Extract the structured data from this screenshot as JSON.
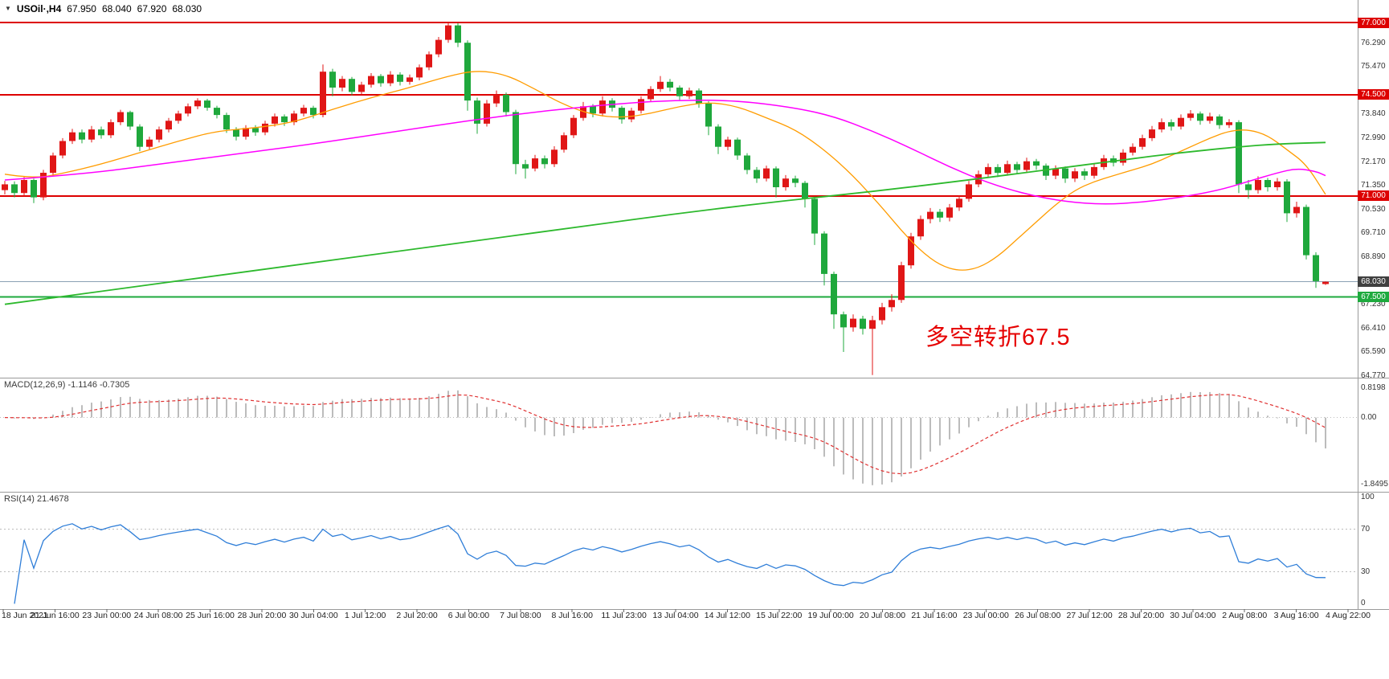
{
  "header": {
    "symbol_period": "USOil·,H4",
    "open": "67.950",
    "high": "68.040",
    "low": "67.920",
    "close": "68.030"
  },
  "annotation": {
    "text": "多空转折67.5",
    "color": "#e60000"
  },
  "panes": {
    "macd": {
      "label": "MACD(12,26,9) -1.1146 -0.7305",
      "axis_labels": [
        "0.8198",
        "0.00",
        "-1.8495"
      ]
    },
    "rsi": {
      "label": "RSI(14) 21.4678",
      "axis_labels": [
        "100",
        "70",
        "30",
        "0"
      ]
    }
  },
  "price_axis": {
    "ticks": [
      "76.290",
      "75.470",
      "73.840",
      "72.990",
      "72.170",
      "71.350",
      "70.530",
      "69.710",
      "68.890",
      "67.230",
      "66.410",
      "65.590",
      "64.770"
    ],
    "tags": [
      {
        "value": "77.000",
        "bg": "#dd0000",
        "fg": "#ffffff"
      },
      {
        "value": "74.500",
        "bg": "#dd0000",
        "fg": "#ffffff"
      },
      {
        "value": "71.000",
        "bg": "#dd0000",
        "fg": "#ffffff"
      },
      {
        "value": "68.030",
        "bg": "#404040",
        "fg": "#ffffff"
      },
      {
        "value": "67.500",
        "bg": "#1eaa3e",
        "fg": "#ffffff"
      }
    ]
  },
  "hlines": [
    {
      "price": 77.0,
      "color": "#dd0000",
      "width": 2
    },
    {
      "price": 74.5,
      "color": "#dd0000",
      "width": 2
    },
    {
      "price": 71.0,
      "color": "#dd0000",
      "width": 2
    },
    {
      "price": 67.5,
      "color": "#1eaa3e",
      "width": 2
    },
    {
      "price": 68.03,
      "color": "#8aa0b4",
      "width": 1,
      "top": true
    }
  ],
  "time_axis": [
    "18 Jun 2021",
    "21 Jun 16:00",
    "23 Jun 00:00",
    "24 Jun 08:00",
    "25 Jun 16:00",
    "28 Jun 20:00",
    "30 Jun 04:00",
    "1 Jul 12:00",
    "2 Jul 20:00",
    "6 Jul 00:00",
    "7 Jul 08:00",
    "8 Jul 16:00",
    "11 Jul 23:00",
    "13 Jul 04:00",
    "14 Jul 12:00",
    "15 Jul 22:00",
    "19 Jul 00:00",
    "20 Jul 08:00",
    "21 Jul 16:00",
    "23 Jul 00:00",
    "26 Jul 08:00",
    "27 Jul 12:00",
    "28 Jul 20:00",
    "30 Jul 04:00",
    "2 Aug 08:00",
    "3 Aug 16:00",
    "4 Aug 22:00"
  ],
  "colors": {
    "candle_up": "#e01616",
    "candle_down": "#1fa83c",
    "macd_hist": "#bcbcbc",
    "macd_signal": "#e03030",
    "rsi_line": "#2f7ed8",
    "level_dotted": "#bcbcbc",
    "frame": "#9a9a9a"
  },
  "chart_data": {
    "type": "candlestick",
    "symbol": "USOil",
    "timeframe": "H4",
    "ylim_price": [
      64.71,
      77.78
    ],
    "candles": [
      [
        71.2,
        71.52,
        71.05,
        71.4
      ],
      [
        71.4,
        71.5,
        70.95,
        71.1
      ],
      [
        71.1,
        71.65,
        71.0,
        71.55
      ],
      [
        71.55,
        71.6,
        70.75,
        70.95
      ],
      [
        70.95,
        71.9,
        70.85,
        71.8
      ],
      [
        71.8,
        72.5,
        71.7,
        72.4
      ],
      [
        72.4,
        73.0,
        72.3,
        72.9
      ],
      [
        72.9,
        73.32,
        72.8,
        73.2
      ],
      [
        73.2,
        73.3,
        72.82,
        72.95
      ],
      [
        72.95,
        73.42,
        72.85,
        73.3
      ],
      [
        73.3,
        73.4,
        72.98,
        73.1
      ],
      [
        73.1,
        73.65,
        73.0,
        73.55
      ],
      [
        73.55,
        73.98,
        73.45,
        73.9
      ],
      [
        73.9,
        73.95,
        73.28,
        73.4
      ],
      [
        73.4,
        73.48,
        72.55,
        72.7
      ],
      [
        72.7,
        73.05,
        72.6,
        72.95
      ],
      [
        72.95,
        73.4,
        72.85,
        73.3
      ],
      [
        73.3,
        73.7,
        73.2,
        73.6
      ],
      [
        73.6,
        73.95,
        73.5,
        73.85
      ],
      [
        73.85,
        74.2,
        73.75,
        74.1
      ],
      [
        74.1,
        74.38,
        74.0,
        74.3
      ],
      [
        74.3,
        74.36,
        73.95,
        74.05
      ],
      [
        74.05,
        74.12,
        73.68,
        73.8
      ],
      [
        73.8,
        73.88,
        73.18,
        73.3
      ],
      [
        73.3,
        73.38,
        72.92,
        73.05
      ],
      [
        73.05,
        73.45,
        72.95,
        73.35
      ],
      [
        73.35,
        73.45,
        73.08,
        73.2
      ],
      [
        73.2,
        73.6,
        73.1,
        73.5
      ],
      [
        73.5,
        73.85,
        73.4,
        73.75
      ],
      [
        73.75,
        73.82,
        73.42,
        73.55
      ],
      [
        73.55,
        73.95,
        73.45,
        73.85
      ],
      [
        73.85,
        74.15,
        73.75,
        74.05
      ],
      [
        74.05,
        74.12,
        73.68,
        73.8
      ],
      [
        73.8,
        75.55,
        73.72,
        75.3
      ],
      [
        75.3,
        75.4,
        74.45,
        74.75
      ],
      [
        74.75,
        75.15,
        74.62,
        75.05
      ],
      [
        75.05,
        75.12,
        74.48,
        74.6
      ],
      [
        74.6,
        74.95,
        74.5,
        74.85
      ],
      [
        74.85,
        75.25,
        74.75,
        75.15
      ],
      [
        75.15,
        75.22,
        74.78,
        74.9
      ],
      [
        74.9,
        75.32,
        74.8,
        75.2
      ],
      [
        75.2,
        75.28,
        74.82,
        74.95
      ],
      [
        74.95,
        75.2,
        74.85,
        75.1
      ],
      [
        75.1,
        75.55,
        75.0,
        75.45
      ],
      [
        75.45,
        76.0,
        75.35,
        75.9
      ],
      [
        75.9,
        76.5,
        75.8,
        76.4
      ],
      [
        76.4,
        77.0,
        76.3,
        76.9
      ],
      [
        76.9,
        76.98,
        76.15,
        76.3
      ],
      [
        76.3,
        76.38,
        73.95,
        74.3
      ],
      [
        74.3,
        74.4,
        73.15,
        73.5
      ],
      [
        73.5,
        74.32,
        73.4,
        74.2
      ],
      [
        74.2,
        74.65,
        74.08,
        74.5
      ],
      [
        74.5,
        74.58,
        73.75,
        73.9
      ],
      [
        73.9,
        73.98,
        71.75,
        72.1
      ],
      [
        72.1,
        72.25,
        71.6,
        71.95
      ],
      [
        71.95,
        72.42,
        71.85,
        72.3
      ],
      [
        72.3,
        72.4,
        71.95,
        72.1
      ],
      [
        72.1,
        72.72,
        72.0,
        72.6
      ],
      [
        72.6,
        73.2,
        72.5,
        73.1
      ],
      [
        73.1,
        73.8,
        73.0,
        73.7
      ],
      [
        73.7,
        74.25,
        73.6,
        74.1
      ],
      [
        74.1,
        74.18,
        73.72,
        73.85
      ],
      [
        73.85,
        74.45,
        73.75,
        74.3
      ],
      [
        74.3,
        74.38,
        73.92,
        74.05
      ],
      [
        74.05,
        74.12,
        73.5,
        73.65
      ],
      [
        73.65,
        74.05,
        73.55,
        73.95
      ],
      [
        73.95,
        74.45,
        73.85,
        74.35
      ],
      [
        74.35,
        74.8,
        74.25,
        74.7
      ],
      [
        74.7,
        75.15,
        74.6,
        74.95
      ],
      [
        74.95,
        75.05,
        74.62,
        74.75
      ],
      [
        74.75,
        74.82,
        74.32,
        74.45
      ],
      [
        74.45,
        74.75,
        74.35,
        74.65
      ],
      [
        74.65,
        74.72,
        74.05,
        74.2
      ],
      [
        74.2,
        74.28,
        73.1,
        73.4
      ],
      [
        73.4,
        73.48,
        72.45,
        72.7
      ],
      [
        72.7,
        73.05,
        72.58,
        72.95
      ],
      [
        72.95,
        73.02,
        72.25,
        72.4
      ],
      [
        72.4,
        72.48,
        71.75,
        71.9
      ],
      [
        71.9,
        72.0,
        71.45,
        71.6
      ],
      [
        71.6,
        72.05,
        71.5,
        71.95
      ],
      [
        71.95,
        72.02,
        70.95,
        71.3
      ],
      [
        71.3,
        71.72,
        71.18,
        71.6
      ],
      [
        71.6,
        71.7,
        71.3,
        71.45
      ],
      [
        71.45,
        71.52,
        70.6,
        70.9
      ],
      [
        70.9,
        70.98,
        69.3,
        69.7
      ],
      [
        69.7,
        69.78,
        67.9,
        68.3
      ],
      [
        68.3,
        68.38,
        66.4,
        66.9
      ],
      [
        66.9,
        67.0,
        65.6,
        66.45
      ],
      [
        66.45,
        66.9,
        66.3,
        66.75
      ],
      [
        66.75,
        66.85,
        66.2,
        66.4
      ],
      [
        66.4,
        66.85,
        64.8,
        66.7
      ],
      [
        66.7,
        67.3,
        66.55,
        67.15
      ],
      [
        67.15,
        67.6,
        67.0,
        67.4
      ],
      [
        67.4,
        68.72,
        67.3,
        68.6
      ],
      [
        68.6,
        69.72,
        68.48,
        69.6
      ],
      [
        69.6,
        70.32,
        69.48,
        70.2
      ],
      [
        70.2,
        70.58,
        70.05,
        70.45
      ],
      [
        70.45,
        70.55,
        70.1,
        70.25
      ],
      [
        70.25,
        70.72,
        70.12,
        70.6
      ],
      [
        70.6,
        71.02,
        70.48,
        70.9
      ],
      [
        70.9,
        71.52,
        70.8,
        71.4
      ],
      [
        71.4,
        71.88,
        71.3,
        71.75
      ],
      [
        71.75,
        72.12,
        71.62,
        72.0
      ],
      [
        72.0,
        72.1,
        71.65,
        71.8
      ],
      [
        71.8,
        72.22,
        71.7,
        72.1
      ],
      [
        72.1,
        72.18,
        71.76,
        71.9
      ],
      [
        71.9,
        72.32,
        71.8,
        72.2
      ],
      [
        72.2,
        72.28,
        71.9,
        72.05
      ],
      [
        72.05,
        72.12,
        71.55,
        71.7
      ],
      [
        71.7,
        72.06,
        71.58,
        71.95
      ],
      [
        71.95,
        72.02,
        71.45,
        71.6
      ],
      [
        71.6,
        71.96,
        71.48,
        71.85
      ],
      [
        71.85,
        71.95,
        71.55,
        71.7
      ],
      [
        71.7,
        72.12,
        71.6,
        72.0
      ],
      [
        72.0,
        72.42,
        71.9,
        72.3
      ],
      [
        72.3,
        72.4,
        72.02,
        72.15
      ],
      [
        72.15,
        72.62,
        72.05,
        72.5
      ],
      [
        72.5,
        72.82,
        72.4,
        72.7
      ],
      [
        72.7,
        73.12,
        72.6,
        73.0
      ],
      [
        73.0,
        73.42,
        72.9,
        73.3
      ],
      [
        73.3,
        73.68,
        73.2,
        73.55
      ],
      [
        73.55,
        73.65,
        73.26,
        73.4
      ],
      [
        73.4,
        73.82,
        73.3,
        73.7
      ],
      [
        73.7,
        73.97,
        73.6,
        73.85
      ],
      [
        73.85,
        73.92,
        73.46,
        73.6
      ],
      [
        73.6,
        73.88,
        73.5,
        73.75
      ],
      [
        73.75,
        73.82,
        73.32,
        73.45
      ],
      [
        73.45,
        73.66,
        73.35,
        73.55
      ],
      [
        73.55,
        73.62,
        71.1,
        71.4
      ],
      [
        71.4,
        71.55,
        70.9,
        71.2
      ],
      [
        71.2,
        71.68,
        71.08,
        71.55
      ],
      [
        71.55,
        71.62,
        71.15,
        71.3
      ],
      [
        71.3,
        71.62,
        71.18,
        71.5
      ],
      [
        71.5,
        71.58,
        70.1,
        70.4
      ],
      [
        70.4,
        70.8,
        70.25,
        70.62
      ],
      [
        70.62,
        70.7,
        68.8,
        68.95
      ],
      [
        68.95,
        69.05,
        67.82,
        68.05
      ],
      [
        67.95,
        68.04,
        67.92,
        68.03
      ]
    ],
    "ma_lines": [
      {
        "name": "ma-line-orange",
        "color": "#ff9c00",
        "width": 1.3,
        "points": [
          [
            0,
            71.75
          ],
          [
            3,
            71.6
          ],
          [
            6,
            71.78
          ],
          [
            10,
            72.1
          ],
          [
            14,
            72.5
          ],
          [
            18,
            72.9
          ],
          [
            22,
            73.25
          ],
          [
            26,
            73.35
          ],
          [
            30,
            73.55
          ],
          [
            34,
            74.0
          ],
          [
            38,
            74.4
          ],
          [
            42,
            74.75
          ],
          [
            46,
            75.15
          ],
          [
            49,
            75.35
          ],
          [
            52,
            75.2
          ],
          [
            55,
            74.7
          ],
          [
            58,
            74.15
          ],
          [
            61,
            73.8
          ],
          [
            64,
            73.7
          ],
          [
            67,
            73.85
          ],
          [
            70,
            74.1
          ],
          [
            73,
            74.25
          ],
          [
            76,
            74.1
          ],
          [
            79,
            73.7
          ],
          [
            82,
            73.3
          ],
          [
            85,
            72.6
          ],
          [
            88,
            71.7
          ],
          [
            91,
            70.6
          ],
          [
            93,
            69.8
          ],
          [
            95,
            69.1
          ],
          [
            97,
            68.6
          ],
          [
            99,
            68.4
          ],
          [
            101,
            68.5
          ],
          [
            103,
            68.9
          ],
          [
            105,
            69.5
          ],
          [
            107,
            70.1
          ],
          [
            109,
            70.7
          ],
          [
            111,
            71.2
          ],
          [
            113,
            71.5
          ],
          [
            115,
            71.7
          ],
          [
            117,
            71.9
          ],
          [
            119,
            72.1
          ],
          [
            121,
            72.4
          ],
          [
            123,
            72.7
          ],
          [
            125,
            73.0
          ],
          [
            127,
            73.25
          ],
          [
            129,
            73.3
          ],
          [
            131,
            73.1
          ],
          [
            133,
            72.6
          ],
          [
            135,
            72.1
          ],
          [
            137,
            71.05
          ]
        ]
      },
      {
        "name": "ma-line-magenta",
        "color": "#ff00ff",
        "width": 1.5,
        "points": [
          [
            0,
            71.55
          ],
          [
            8,
            71.75
          ],
          [
            16,
            72.1
          ],
          [
            24,
            72.45
          ],
          [
            32,
            72.8
          ],
          [
            40,
            73.2
          ],
          [
            48,
            73.6
          ],
          [
            56,
            73.95
          ],
          [
            64,
            74.2
          ],
          [
            70,
            74.32
          ],
          [
            76,
            74.3
          ],
          [
            82,
            74.05
          ],
          [
            86,
            73.75
          ],
          [
            90,
            73.25
          ],
          [
            94,
            72.65
          ],
          [
            98,
            72.0
          ],
          [
            102,
            71.45
          ],
          [
            106,
            71.05
          ],
          [
            110,
            70.8
          ],
          [
            114,
            70.7
          ],
          [
            118,
            70.78
          ],
          [
            122,
            70.95
          ],
          [
            126,
            71.2
          ],
          [
            129,
            71.5
          ],
          [
            132,
            71.8
          ],
          [
            134,
            71.95
          ],
          [
            136,
            71.85
          ],
          [
            137,
            71.7
          ]
        ]
      },
      {
        "name": "ma-line-green",
        "color": "#2db92d",
        "width": 1.8,
        "points": [
          [
            0,
            67.25
          ],
          [
            10,
            67.7
          ],
          [
            20,
            68.15
          ],
          [
            30,
            68.6
          ],
          [
            40,
            69.05
          ],
          [
            50,
            69.5
          ],
          [
            60,
            69.95
          ],
          [
            70,
            70.4
          ],
          [
            80,
            70.8
          ],
          [
            90,
            71.15
          ],
          [
            100,
            71.55
          ],
          [
            108,
            71.9
          ],
          [
            116,
            72.25
          ],
          [
            122,
            72.5
          ],
          [
            128,
            72.7
          ],
          [
            132,
            72.8
          ],
          [
            137,
            72.85
          ]
        ]
      }
    ],
    "macd": {
      "params": [
        12,
        26,
        9
      ],
      "current": [
        -1.1146,
        -0.7305
      ],
      "ylim": [
        -2.05,
        1.1
      ],
      "axis": [
        0.8198,
        0,
        -1.8495
      ]
    },
    "rsi": {
      "period": 14,
      "current": 21.4678,
      "ylim": [
        -5,
        105
      ],
      "levels": [
        70,
        30
      ],
      "axis": [
        100,
        70,
        30,
        0
      ]
    }
  }
}
